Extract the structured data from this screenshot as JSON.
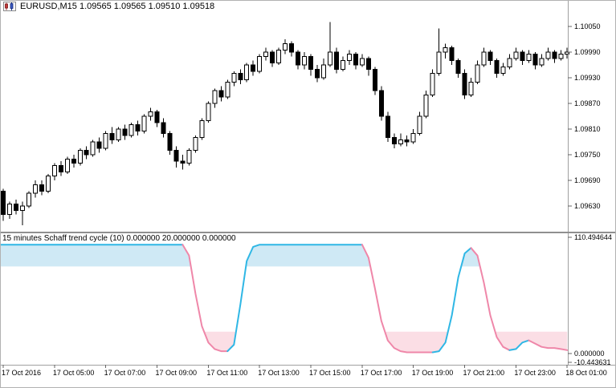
{
  "header": {
    "title": "EURUSD,M15 1.09565 1.09565 1.09510 1.09518"
  },
  "chrome": {
    "border_color": "#b2b2b2",
    "axis_line_color": "#a0a0a0",
    "splitter_color": "#8f8f8f",
    "tick_color": "#666666",
    "label_color": "#000000"
  },
  "x_axis": {
    "labels": [
      {
        "text": "17 Oct 2016",
        "index": 0
      },
      {
        "text": "17 Oct 05:00",
        "index": 8
      },
      {
        "text": "17 Oct 07:00",
        "index": 16
      },
      {
        "text": "17 Oct 09:00",
        "index": 24
      },
      {
        "text": "17 Oct 11:00",
        "index": 32
      },
      {
        "text": "17 Oct 13:00",
        "index": 40
      },
      {
        "text": "17 Oct 15:00",
        "index": 48
      },
      {
        "text": "17 Oct 17:00",
        "index": 56
      },
      {
        "text": "17 Oct 19:00",
        "index": 64
      },
      {
        "text": "17 Oct 21:00",
        "index": 72
      },
      {
        "text": "17 Oct 23:00",
        "index": 80
      },
      {
        "text": "18 Oct 01:00",
        "index": 88
      }
    ]
  },
  "chart_data": [
    {
      "type": "candlestick",
      "symbol": "EURUSD",
      "period": "M15",
      "header_values": {
        "open": "1.09565",
        "high": "1.09565",
        "low": "1.09510",
        "close": "1.09518"
      },
      "y_ticks": [
        "1.10050",
        "1.09990",
        "1.09930",
        "1.09870",
        "1.09810",
        "1.09750",
        "1.09690",
        "1.09630"
      ],
      "ylim": [
        1.095681,
        1.101119
      ],
      "colors": {
        "bull": "#ffffff",
        "bear": "#000000",
        "outline": "#000000"
      },
      "candles": [
        [
          1.09665,
          1.0967,
          1.09595,
          1.0961
        ],
        [
          1.0961,
          1.0964,
          1.096,
          1.09635
        ],
        [
          1.09635,
          1.09645,
          1.0961,
          1.0962
        ],
        [
          1.0962,
          1.0964,
          1.09585,
          1.0963
        ],
        [
          1.0963,
          1.09665,
          1.09625,
          1.0966
        ],
        [
          1.0966,
          1.0969,
          1.0965,
          1.0968
        ],
        [
          1.0968,
          1.0969,
          1.09655,
          1.09665
        ],
        [
          1.09665,
          1.09705,
          1.0966,
          1.097
        ],
        [
          1.097,
          1.0973,
          1.0969,
          1.09725
        ],
        [
          1.09725,
          1.09735,
          1.097,
          1.0971
        ],
        [
          1.0971,
          1.09745,
          1.09705,
          1.0974
        ],
        [
          1.0974,
          1.0975,
          1.0972,
          1.0973
        ],
        [
          1.0973,
          1.09765,
          1.09725,
          1.0976
        ],
        [
          1.0976,
          1.0977,
          1.0974,
          1.0975
        ],
        [
          1.0975,
          1.09785,
          1.09745,
          1.0978
        ],
        [
          1.0978,
          1.0979,
          1.09755,
          1.09765
        ],
        [
          1.09765,
          1.09805,
          1.0976,
          1.098
        ],
        [
          1.098,
          1.09815,
          1.09775,
          1.09785
        ],
        [
          1.09785,
          1.09815,
          1.0978,
          1.0981
        ],
        [
          1.0981,
          1.0982,
          1.09785,
          1.09795
        ],
        [
          1.09795,
          1.09825,
          1.0979,
          1.0982
        ],
        [
          1.0982,
          1.0983,
          1.09795,
          1.09805
        ],
        [
          1.09805,
          1.09845,
          1.098,
          1.0984
        ],
        [
          1.0984,
          1.0986,
          1.0983,
          1.0985
        ],
        [
          1.0985,
          1.09855,
          1.09815,
          1.09825
        ],
        [
          1.09825,
          1.09835,
          1.0979,
          1.098
        ],
        [
          1.098,
          1.09805,
          1.0975,
          1.0976
        ],
        [
          1.0976,
          1.0977,
          1.0972,
          1.09735
        ],
        [
          1.09735,
          1.0975,
          1.09715,
          1.0973
        ],
        [
          1.0973,
          1.09765,
          1.09725,
          1.0976
        ],
        [
          1.0976,
          1.09795,
          1.09755,
          1.0979
        ],
        [
          1.0979,
          1.09835,
          1.09785,
          1.0983
        ],
        [
          1.0983,
          1.09875,
          1.09825,
          1.0987
        ],
        [
          1.0987,
          1.09905,
          1.0986,
          1.099
        ],
        [
          1.099,
          1.0991,
          1.09875,
          1.09885
        ],
        [
          1.09885,
          1.09925,
          1.0988,
          1.0992
        ],
        [
          1.0992,
          1.09945,
          1.0991,
          1.0994
        ],
        [
          1.0994,
          1.0995,
          1.09915,
          1.09925
        ],
        [
          1.09925,
          1.09965,
          1.0992,
          1.0996
        ],
        [
          1.0996,
          1.0997,
          1.09935,
          1.09945
        ],
        [
          1.09945,
          1.09985,
          1.0994,
          1.0998
        ],
        [
          1.0998,
          1.1,
          1.0997,
          1.0999
        ],
        [
          1.0999,
          1.09995,
          1.09955,
          1.09965
        ],
        [
          1.09965,
          1.1,
          1.0996,
          1.09995
        ],
        [
          1.09995,
          1.1002,
          1.09985,
          1.1001
        ],
        [
          1.1001,
          1.10015,
          1.0998,
          1.0999
        ],
        [
          1.0999,
          1.09995,
          1.0995,
          1.0996
        ],
        [
          1.0996,
          1.0999,
          1.0995,
          1.0998
        ],
        [
          1.0998,
          1.09985,
          1.09935,
          1.0995
        ],
        [
          1.0995,
          1.0996,
          1.0992,
          1.0993
        ],
        [
          1.0993,
          1.09975,
          1.09925,
          1.0996
        ],
        [
          1.0996,
          1.1006,
          1.09955,
          1.0999
        ],
        [
          1.0999,
          1.1,
          1.0994,
          1.0995
        ],
        [
          1.0995,
          1.0998,
          1.09945,
          1.0997
        ],
        [
          1.0997,
          1.09995,
          1.0996,
          1.09985
        ],
        [
          1.09985,
          1.0999,
          1.0995,
          1.0996
        ],
        [
          1.0996,
          1.09985,
          1.09955,
          1.09975
        ],
        [
          1.09975,
          1.0998,
          1.09935,
          1.0995
        ],
        [
          1.0995,
          1.09955,
          1.0989,
          1.099
        ],
        [
          1.099,
          1.0991,
          1.0983,
          1.0984
        ],
        [
          1.0984,
          1.0985,
          1.0978,
          1.0979
        ],
        [
          1.0979,
          1.098,
          1.09765,
          1.09775
        ],
        [
          1.09775,
          1.098,
          1.0977,
          1.09785
        ],
        [
          1.09785,
          1.09795,
          1.0977,
          1.0978
        ],
        [
          1.0978,
          1.0981,
          1.09775,
          1.098
        ],
        [
          1.098,
          1.0985,
          1.09795,
          1.0984
        ],
        [
          1.0984,
          1.099,
          1.09835,
          1.0989
        ],
        [
          1.0989,
          1.0995,
          1.09885,
          1.0994
        ],
        [
          1.0994,
          1.10045,
          1.09935,
          1.0999
        ],
        [
          1.0999,
          1.1001,
          1.09975,
          1.1
        ],
        [
          1.1,
          1.10005,
          1.0996,
          1.0997
        ],
        [
          1.0997,
          1.09975,
          1.0993,
          1.0994
        ],
        [
          1.0994,
          1.0995,
          1.0988,
          1.0989
        ],
        [
          1.0989,
          1.0993,
          1.09885,
          1.0992
        ],
        [
          1.0992,
          1.0997,
          1.09915,
          1.0996
        ],
        [
          1.0996,
          1.1,
          1.09955,
          1.0999
        ],
        [
          1.0999,
          1.09995,
          1.0996,
          1.0997
        ],
        [
          1.0997,
          1.09975,
          1.0993,
          1.0994
        ],
        [
          1.0994,
          1.09965,
          1.09935,
          1.09955
        ],
        [
          1.09955,
          1.09985,
          1.0995,
          1.09975
        ],
        [
          1.09975,
          1.1,
          1.0997,
          1.0999
        ],
        [
          1.0999,
          1.09995,
          1.0996,
          1.0997
        ],
        [
          1.0997,
          1.09995,
          1.09965,
          1.09985
        ],
        [
          1.09985,
          1.0999,
          1.0995,
          1.0996
        ],
        [
          1.0996,
          1.09985,
          1.09955,
          1.09975
        ],
        [
          1.09975,
          1.1,
          1.0997,
          1.0999
        ],
        [
          1.0999,
          1.09995,
          1.09965,
          1.09975
        ],
        [
          1.09975,
          1.09995,
          1.0997,
          1.09985
        ],
        [
          1.09985,
          1.1,
          1.09975,
          1.0999
        ]
      ]
    },
    {
      "type": "line",
      "title": "15 minutes Schaff trend cycle (10) 0.000000 20.000000 0.000000",
      "y_ticks": [
        "110.494644",
        "0.000000",
        "-10.443631"
      ],
      "ylim": [
        -10.443631,
        110.494644
      ],
      "levels": {
        "upper": 80,
        "lower": 20
      },
      "colors": {
        "up": "#2fb7e5",
        "down": "#ef87a9",
        "fill_upper": "#cfe9f5",
        "fill_lower": "#fbdee5"
      },
      "values": [
        100,
        100,
        100,
        100,
        100,
        100,
        100,
        100,
        100,
        100,
        100,
        100,
        100,
        100,
        100,
        100,
        100,
        100,
        100,
        100,
        100,
        100,
        100,
        100,
        100,
        100,
        100,
        100,
        100,
        90,
        55,
        25,
        10,
        4,
        2,
        2,
        8,
        45,
        85,
        98,
        100,
        100,
        100,
        100,
        100,
        100,
        100,
        100,
        100,
        100,
        100,
        100,
        100,
        100,
        100,
        100,
        100,
        88,
        60,
        30,
        12,
        5,
        2,
        1,
        1,
        1,
        1,
        1,
        2,
        10,
        35,
        70,
        92,
        97,
        90,
        65,
        35,
        15,
        6,
        3,
        4,
        10,
        12,
        9,
        6,
        5,
        5,
        4,
        3
      ]
    }
  ]
}
